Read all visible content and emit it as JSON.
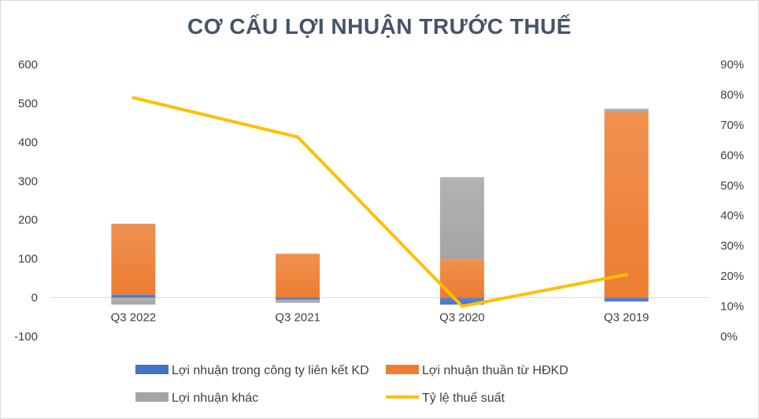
{
  "chart_data": {
    "type": "bar",
    "title": "CƠ CẤU LỢI NHUẬN TRƯỚC THUẾ",
    "categories": [
      "Q3 2022",
      "Q3 2021",
      "Q3 2020",
      "Q3 2019"
    ],
    "series": [
      {
        "name": "Lợi nhuận trong công ty liên kết KD",
        "kind": "bar",
        "color": "#4472c4",
        "values": [
          8,
          -5,
          -18,
          -10
        ]
      },
      {
        "name": "Lợi nhuận thuần từ HĐKD",
        "kind": "bar",
        "color": "#ed7d31",
        "values": [
          182,
          113,
          100,
          478
        ]
      },
      {
        "name": "Lợi nhuận khác",
        "kind": "bar",
        "color": "#a5a5a5",
        "values": [
          -18,
          -8,
          210,
          8
        ]
      },
      {
        "name": "Tỷ lệ thuế suất",
        "kind": "line",
        "axis": "right",
        "color": "#ffc000",
        "values": [
          0.79,
          0.66,
          0.1,
          0.205
        ]
      }
    ],
    "y_left": {
      "ylim": [
        -100,
        600
      ],
      "ticks": [
        "600",
        "500",
        "400",
        "300",
        "200",
        "100",
        "0",
        "-100"
      ]
    },
    "y_right": {
      "ylim": [
        0,
        0.9
      ],
      "ticks": [
        "90%",
        "80%",
        "70%",
        "60%",
        "50%",
        "40%",
        "30%",
        "20%",
        "10%",
        "0%"
      ]
    },
    "grid": false,
    "legend_position": "bottom"
  }
}
